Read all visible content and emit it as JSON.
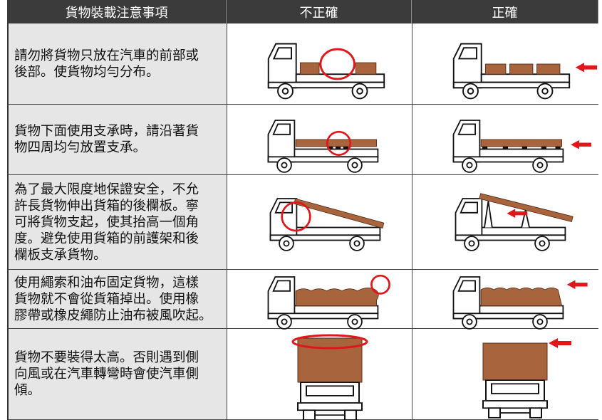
{
  "header": {
    "columns": [
      "貨物裝載注意事項",
      "不正確",
      "正確"
    ]
  },
  "rows": [
    {
      "lines": [
        "請勿將貨物只放在汽車的前部或",
        "後部。使貨物均勻分布。"
      ]
    },
    {
      "lines": [
        "貨物下面使用支承時，請沿著貨",
        "物四周均勻放置支承。"
      ]
    },
    {
      "lines": [
        "為了最大限度地保證安全，不允",
        "許長貨物伸出貨箱的後欄板。寧",
        "可將貨物支起，使其抬高一個角",
        "度。避免使用貨箱的前護架和後",
        "欄板支承貨物。"
      ]
    },
    {
      "lines": [
        "使用繩索和油布固定貨物，這樣",
        "貨物就不會從貨箱掉出。使用橡",
        "膠帶或橡皮繩防止油布被風吹起。"
      ]
    },
    {
      "lines": [
        "貨物不要裝得太高。否則遇到側",
        "向風或在汽車轉彎時會使汽車側",
        "傾。"
      ]
    }
  ]
}
